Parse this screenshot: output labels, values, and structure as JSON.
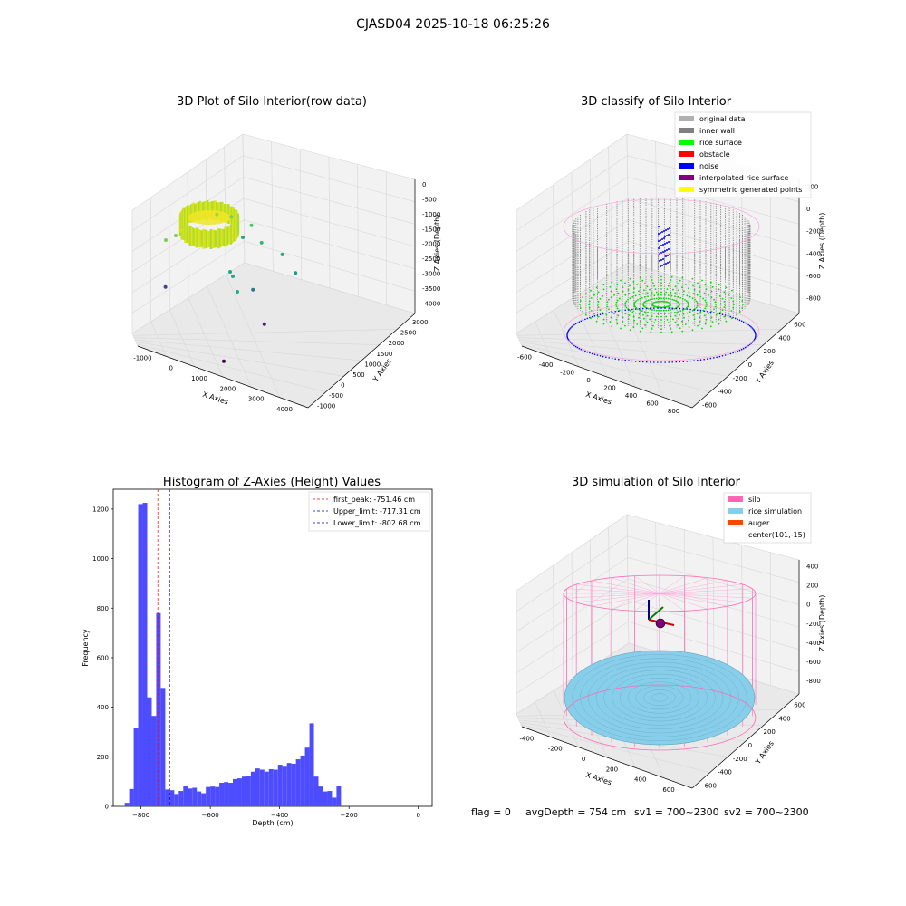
{
  "figure_title": "CJASD04 2025-10-18 06:25:26",
  "footer": {
    "flag": "flag = 0",
    "avg_depth": "avgDepth = 754 cm",
    "sv1": "sv1 = 700~2300",
    "sv2": "sv2 = 700~2300"
  },
  "colors": {
    "pane": "#f2f2f2",
    "pane_edge": "#d6d6d6",
    "hist_bar": "#4d4dff",
    "peak_line": "#ff0000",
    "limit_line": "#0000cc",
    "silo": "#ff69b4",
    "rice": "#87ceeb",
    "auger": "#ff4500",
    "inner_wall": "#808080",
    "rice_surface": "#00ff00",
    "noise": "#0000ff"
  },
  "chart_data": [
    {
      "type": "scatter3d",
      "title": "3D Plot of Silo Interior(row data)",
      "xlabel": "X Axies",
      "ylabel": "Y Axies",
      "zlabel": "Z Axies (Depth)",
      "x_ticks": [
        "-1000",
        "0",
        "1000",
        "2000",
        "3000",
        "4000"
      ],
      "y_ticks": [
        "-1000",
        "-500",
        "0",
        "500",
        "1000",
        "1500",
        "2000",
        "2500",
        "3000"
      ],
      "z_ticks": [
        "0",
        "-500",
        "-1000",
        "-1500",
        "-2000",
        "-2500",
        "-3000",
        "-3500",
        "-4000"
      ],
      "grid": true,
      "colormap": "viridis",
      "outliers": [
        {
          "x": 1200,
          "y": 1100,
          "z": -1100
        },
        {
          "x": 1500,
          "y": 1300,
          "z": -1200
        },
        {
          "x": 1900,
          "y": 1600,
          "z": -1500
        },
        {
          "x": 2300,
          "y": 1500,
          "z": -1800
        },
        {
          "x": 2800,
          "y": 1700,
          "z": -2100
        },
        {
          "x": 3300,
          "y": 1600,
          "z": -2400
        },
        {
          "x": 2500,
          "y": 900,
          "z": -2700
        },
        {
          "x": 200,
          "y": 300,
          "z": -3000
        },
        {
          "x": 3100,
          "y": 600,
          "z": -3300
        },
        {
          "x": 2600,
          "y": -400,
          "z": -3900
        }
      ]
    },
    {
      "type": "scatter3d",
      "title": "3D classify of Silo Interior",
      "xlabel": "X Axies",
      "ylabel": "Y Axies",
      "zlabel": "Z Axies (Depth)",
      "x_ticks": [
        "-600",
        "-400",
        "-200",
        "0",
        "200",
        "400",
        "600",
        "800"
      ],
      "y_ticks": [
        "-600",
        "-400",
        "-200",
        "0",
        "200",
        "400",
        "600"
      ],
      "z_ticks": [
        "200",
        "0",
        "-200",
        "-400",
        "-600",
        "-800"
      ],
      "grid": true,
      "legend_position": "top-right",
      "legend": [
        {
          "label": "original data",
          "color": "#b0b0b0"
        },
        {
          "label": "inner wall",
          "color": "#808080"
        },
        {
          "label": "rice surface",
          "color": "#00ff00"
        },
        {
          "label": "obstacle",
          "color": "#ff0000"
        },
        {
          "label": "noise",
          "color": "#0000ff"
        },
        {
          "label": "interpolated rice surface",
          "color": "#800080"
        },
        {
          "label": "symmetric generated points",
          "color": "#ffff00"
        }
      ]
    },
    {
      "type": "bar",
      "title": "Histogram of Z-Axies (Height) Values",
      "xlabel": "Depth (cm)",
      "ylabel": "Frequency",
      "xlim": [
        -880,
        40
      ],
      "ylim": [
        0,
        1280
      ],
      "x_ticks": [
        -800,
        -600,
        -400,
        -200,
        0
      ],
      "y_ticks": [
        0,
        200,
        400,
        600,
        800,
        1000,
        1200
      ],
      "bin_edges_start": -860,
      "bin_width": 13,
      "values": [
        2,
        14,
        70,
        315,
        1220,
        1225,
        440,
        365,
        780,
        478,
        68,
        65,
        50,
        62,
        82,
        72,
        75,
        60,
        53,
        78,
        80,
        78,
        95,
        98,
        95,
        110,
        113,
        120,
        123,
        140,
        153,
        148,
        140,
        150,
        148,
        168,
        160,
        175,
        172,
        190,
        205,
        237,
        335,
        120,
        80,
        60,
        62,
        35,
        82
      ],
      "lines": [
        {
          "label": "first_peak: -751.46 cm",
          "x": -751.46,
          "color": "#ff0000"
        },
        {
          "label": "Upper_limit: -717.31 cm",
          "x": -717.31,
          "color": "#0000cc"
        },
        {
          "label": "Lower_limit: -802.68 cm",
          "x": -802.68,
          "color": "#0000cc"
        }
      ],
      "legend_position": "top-right"
    },
    {
      "type": "surface3d",
      "title": "3D simulation of Silo Interior",
      "xlabel": "X Axies",
      "ylabel": "Y Axies",
      "zlabel": "Z Axies (Depth)",
      "x_ticks": [
        "-400",
        "-200",
        "0",
        "200",
        "400",
        "600"
      ],
      "y_ticks": [
        "-600",
        "-400",
        "-200",
        "0",
        "200",
        "400",
        "600"
      ],
      "z_ticks": [
        "400",
        "200",
        "0",
        "-200",
        "-400",
        "-600",
        "-800"
      ],
      "grid": true,
      "legend_position": "top-right",
      "legend": [
        {
          "label": "silo",
          "color": "#ff69b4"
        },
        {
          "label": "rice simulation",
          "color": "#87ceeb"
        },
        {
          "label": "auger",
          "color": "#ff4500"
        },
        {
          "label": "center(101,-15)",
          "color": ""
        }
      ]
    }
  ]
}
